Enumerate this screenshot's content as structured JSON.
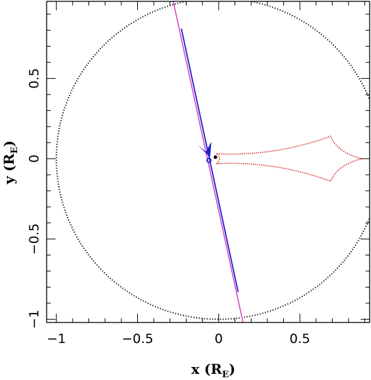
{
  "chart_data": {
    "type": "scatter",
    "xlabel": "x (R",
    "xlabel_sub": "E",
    "xlabel_close": ")",
    "ylabel": "y (R",
    "ylabel_sub": "E",
    "ylabel_close": ")",
    "xlim": [
      -1.06,
      0.93
    ],
    "ylim": [
      -1.02,
      0.98
    ],
    "x_ticks": [
      {
        "value": -1,
        "label": "−1"
      },
      {
        "value": -0.5,
        "label": "−0.5"
      },
      {
        "value": 0,
        "label": "0"
      },
      {
        "value": 0.5,
        "label": "0.5"
      }
    ],
    "y_ticks": [
      {
        "value": -1,
        "label": "−1"
      },
      {
        "value": -0.5,
        "label": "−0.5"
      },
      {
        "value": 0,
        "label": "0"
      },
      {
        "value": 0.5,
        "label": "0.5"
      }
    ],
    "einstein_ring": {
      "center": [
        0,
        0
      ],
      "radius": 1.0,
      "color": "#000000",
      "style": "dotted"
    },
    "source_trajectory": {
      "points": [
        [
          -0.28,
          0.98
        ],
        [
          0.15,
          -1.02
        ]
      ],
      "color": "#d946c8"
    },
    "model_trajectory": {
      "points": [
        [
          -0.23,
          0.81
        ],
        [
          0.12,
          -0.83
        ]
      ],
      "color": "#1f1fd0"
    },
    "caustic": {
      "color": "#d42020",
      "cusps": [
        [
          -0.01,
          0.03
        ],
        [
          0.88,
          0.0
        ],
        [
          0.69,
          0.14
        ],
        [
          0.69,
          -0.14
        ],
        [
          -0.01,
          -0.03
        ]
      ]
    },
    "lens_point": {
      "x": -0.02,
      "y": 0.01,
      "color": "#000000"
    },
    "source_circle": {
      "x": -0.06,
      "y": -0.01,
      "color": "#1f1fd0"
    },
    "direction_arrow": {
      "x": -0.07,
      "y": 0.03,
      "color": "#1f1fd0"
    }
  }
}
